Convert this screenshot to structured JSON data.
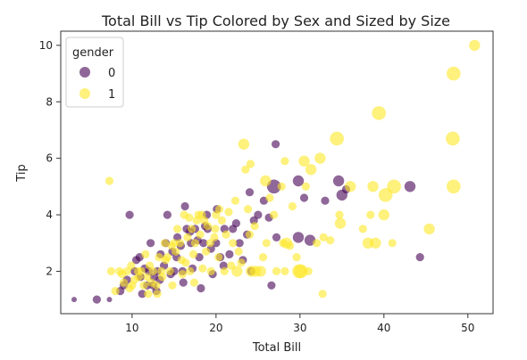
{
  "chart_data": {
    "type": "scatter",
    "title": "Total Bill vs Tip Colored by Sex and Sized by Size",
    "xlabel": "Total Bill",
    "ylabel": "Tip",
    "xlim": [
      1.5,
      53
    ],
    "ylim": [
      0.5,
      10.5
    ],
    "xticks": [
      10,
      20,
      30,
      40,
      50
    ],
    "yticks": [
      2,
      4,
      6,
      8,
      10
    ],
    "grid": false,
    "legend": {
      "title": "gender",
      "placement": "top-left",
      "entries": [
        {
          "label": "0",
          "color": "#440154"
        },
        {
          "label": "1",
          "color": "#fde725"
        }
      ]
    },
    "colors": {
      "0": "#440154",
      "1": "#fde725"
    },
    "marker_alpha": 0.6,
    "series": [
      {
        "name": "0",
        "points": [
          [
            3.1,
            1.0,
            1
          ],
          [
            5.8,
            1.0,
            2
          ],
          [
            7.3,
            1.0,
            1
          ],
          [
            9.7,
            4.0,
            2
          ],
          [
            14.2,
            4.0,
            2
          ],
          [
            16.3,
            4.3,
            2
          ],
          [
            20.1,
            4.2,
            2
          ],
          [
            27.1,
            6.5,
            2
          ],
          [
            29.8,
            5.2,
            3
          ],
          [
            26.9,
            5.0,
            4
          ],
          [
            29.8,
            3.2,
            3
          ],
          [
            34.6,
            5.2,
            3
          ],
          [
            35.0,
            4.7,
            3
          ],
          [
            43.1,
            5.0,
            3
          ],
          [
            44.3,
            2.5,
            2
          ],
          [
            26.6,
            1.5,
            2
          ],
          [
            24.2,
            2.0,
            2
          ],
          [
            10.3,
            2.0,
            2
          ],
          [
            11.0,
            1.8,
            2
          ],
          [
            12.0,
            2.0,
            2
          ],
          [
            12.5,
            1.5,
            2
          ],
          [
            13.0,
            2.0,
            2
          ],
          [
            13.4,
            2.6,
            2
          ],
          [
            14.0,
            3.0,
            2
          ],
          [
            15.0,
            2.0,
            2
          ],
          [
            15.3,
            2.5,
            2
          ],
          [
            16.0,
            2.0,
            2
          ],
          [
            16.5,
            3.5,
            2
          ],
          [
            17.0,
            3.0,
            2
          ],
          [
            17.5,
            3.5,
            2
          ],
          [
            18.0,
            2.5,
            2
          ],
          [
            18.5,
            3.0,
            2
          ],
          [
            19.0,
            3.5,
            2
          ],
          [
            20.0,
            3.0,
            2
          ],
          [
            20.5,
            2.5,
            2
          ],
          [
            21.0,
            3.5,
            2
          ],
          [
            22.0,
            3.5,
            2
          ],
          [
            22.8,
            3.0,
            2
          ],
          [
            23.7,
            3.3,
            2
          ],
          [
            24.5,
            3.8,
            2
          ],
          [
            25.0,
            4.0,
            2
          ],
          [
            27.2,
            3.2,
            2
          ],
          [
            12.6,
            1.8,
            2
          ],
          [
            11.5,
            2.1,
            2
          ],
          [
            10.5,
            2.4,
            2
          ],
          [
            9.0,
            1.5,
            2
          ],
          [
            8.6,
            1.3,
            2
          ],
          [
            13.8,
            2.2,
            2
          ],
          [
            14.6,
            1.9,
            2
          ],
          [
            15.8,
            2.9,
            2
          ],
          [
            18.2,
            1.4,
            2
          ],
          [
            19.6,
            1.9,
            2
          ],
          [
            21.6,
            2.6,
            2
          ],
          [
            22.4,
            3.7,
            2
          ],
          [
            16.9,
            3.4,
            2
          ],
          [
            17.8,
            3.1,
            2
          ],
          [
            11.8,
            1.5,
            2
          ],
          [
            10.9,
            2.5,
            2
          ],
          [
            12.2,
            3.0,
            2
          ],
          [
            24.0,
            4.8,
            2
          ],
          [
            25.7,
            4.5,
            2
          ],
          [
            30.5,
            4.6,
            2
          ],
          [
            33.0,
            4.5,
            2
          ],
          [
            35.5,
            4.9,
            2
          ],
          [
            18.7,
            3.6,
            2
          ],
          [
            19.4,
            2.8,
            2
          ],
          [
            20.9,
            2.2,
            2
          ],
          [
            13.3,
            1.7,
            2
          ],
          [
            14.8,
            2.7,
            2
          ],
          [
            16.1,
            1.6,
            2
          ],
          [
            17.2,
            2.1,
            2
          ],
          [
            15.4,
            3.2,
            2
          ],
          [
            18.9,
            4.0,
            2
          ],
          [
            12.9,
            1.3,
            2
          ],
          [
            11.2,
            1.2,
            2
          ],
          [
            9.4,
            1.7,
            2
          ],
          [
            23.2,
            2.4,
            2
          ],
          [
            26.3,
            3.9,
            2
          ],
          [
            31.2,
            3.1,
            3
          ]
        ]
      },
      {
        "name": "1",
        "points": [
          [
            50.8,
            10.0,
            3
          ],
          [
            48.3,
            9.0,
            4
          ],
          [
            39.4,
            7.6,
            4
          ],
          [
            34.4,
            6.7,
            4
          ],
          [
            48.2,
            6.7,
            4
          ],
          [
            48.3,
            5.0,
            4
          ],
          [
            41.2,
            5.0,
            4
          ],
          [
            40.2,
            4.7,
            4
          ],
          [
            38.7,
            5.0,
            3
          ],
          [
            32.4,
            6.0,
            3
          ],
          [
            31.3,
            5.6,
            3
          ],
          [
            30.5,
            5.9,
            3
          ],
          [
            28.2,
            5.9,
            2
          ],
          [
            25.9,
            5.2,
            3
          ],
          [
            23.3,
            6.5,
            3
          ],
          [
            24.1,
            5.8,
            2
          ],
          [
            23.5,
            5.6,
            2
          ],
          [
            7.3,
            5.2,
            2
          ],
          [
            45.4,
            3.5,
            3
          ],
          [
            40.0,
            4.0,
            3
          ],
          [
            38.1,
            3.0,
            3
          ],
          [
            39.0,
            3.0,
            3
          ],
          [
            41.0,
            3.0,
            2
          ],
          [
            34.8,
            3.7,
            3
          ],
          [
            34.7,
            4.0,
            2
          ],
          [
            32.8,
            3.2,
            2
          ],
          [
            32.7,
            1.2,
            2
          ],
          [
            30.1,
            2.0,
            4
          ],
          [
            29.9,
            2.0,
            4
          ],
          [
            28.4,
            3.0,
            3
          ],
          [
            28.2,
            2.0,
            2
          ],
          [
            27.2,
            2.0,
            2
          ],
          [
            25.3,
            2.0,
            3
          ],
          [
            24.7,
            2.0,
            3
          ],
          [
            24.2,
            2.0,
            3
          ],
          [
            22.5,
            2.0,
            3
          ],
          [
            21.0,
            2.0,
            2
          ],
          [
            20.3,
            2.5,
            2
          ],
          [
            19.8,
            3.2,
            2
          ],
          [
            19.4,
            2.0,
            2
          ],
          [
            18.8,
            2.7,
            2
          ],
          [
            18.3,
            4.0,
            2
          ],
          [
            17.9,
            4.0,
            2
          ],
          [
            17.5,
            3.0,
            2
          ],
          [
            17.3,
            2.6,
            2
          ],
          [
            16.9,
            2.0,
            2
          ],
          [
            16.6,
            3.2,
            2
          ],
          [
            16.4,
            2.3,
            2
          ],
          [
            16.0,
            1.9,
            2
          ],
          [
            15.7,
            3.0,
            2
          ],
          [
            15.4,
            3.5,
            2
          ],
          [
            15.0,
            3.0,
            2
          ],
          [
            14.8,
            1.5,
            2
          ],
          [
            14.5,
            2.0,
            2
          ],
          [
            14.2,
            2.5,
            2
          ],
          [
            13.9,
            3.0,
            2
          ],
          [
            13.5,
            2.0,
            2
          ],
          [
            13.2,
            2.5,
            2
          ],
          [
            12.9,
            1.5,
            2
          ],
          [
            12.5,
            2.0,
            2
          ],
          [
            12.1,
            2.2,
            2
          ],
          [
            11.8,
            1.8,
            2
          ],
          [
            11.4,
            1.5,
            2
          ],
          [
            11.1,
            2.0,
            2
          ],
          [
            10.7,
            2.0,
            2
          ],
          [
            10.3,
            1.7,
            2
          ],
          [
            10.0,
            1.5,
            2
          ],
          [
            9.7,
            1.4,
            2
          ],
          [
            9.4,
            2.0,
            2
          ],
          [
            9.0,
            1.6,
            2
          ],
          [
            8.5,
            2.0,
            2
          ],
          [
            7.5,
            2.0,
            2
          ],
          [
            8.0,
            1.3,
            2
          ],
          [
            18.6,
            3.8,
            2
          ],
          [
            19.0,
            3.6,
            2
          ],
          [
            20.0,
            4.0,
            2
          ],
          [
            20.7,
            3.8,
            2
          ],
          [
            21.5,
            4.1,
            2
          ],
          [
            22.0,
            3.0,
            2
          ],
          [
            22.7,
            2.7,
            2
          ],
          [
            23.0,
            2.3,
            2
          ],
          [
            24.0,
            3.3,
            2
          ],
          [
            24.6,
            3.6,
            2
          ],
          [
            25.6,
            2.5,
            2
          ],
          [
            26.0,
            3.0,
            2
          ],
          [
            26.9,
            4.0,
            2
          ],
          [
            28.0,
            3.0,
            2
          ],
          [
            28.8,
            2.9,
            2
          ],
          [
            29.6,
            2.5,
            2
          ],
          [
            31.0,
            2.0,
            2
          ],
          [
            32.0,
            3.0,
            2
          ],
          [
            33.6,
            3.1,
            2
          ],
          [
            38.4,
            4.0,
            2
          ],
          [
            37.5,
            3.5,
            2
          ],
          [
            17.1,
            3.5,
            2
          ],
          [
            17.7,
            3.8,
            2
          ],
          [
            18.1,
            3.3,
            2
          ],
          [
            19.3,
            3.0,
            2
          ],
          [
            15.2,
            2.7,
            2
          ],
          [
            14.0,
            2.4,
            2
          ],
          [
            13.0,
            1.2,
            2
          ],
          [
            11.9,
            1.2,
            2
          ],
          [
            16.2,
            4.0,
            2
          ],
          [
            16.8,
            3.9,
            2
          ],
          [
            21.2,
            3.3,
            2
          ],
          [
            20.4,
            4.2,
            2
          ],
          [
            22.3,
            4.5,
            2
          ],
          [
            13.6,
            1.8,
            2
          ],
          [
            12.3,
            1.6,
            2
          ],
          [
            14.7,
            2.9,
            2
          ],
          [
            15.9,
            2.4,
            2
          ],
          [
            18.4,
            2.1,
            2
          ],
          [
            19.9,
            3.5,
            2
          ],
          [
            26.4,
            4.6,
            2
          ],
          [
            29.1,
            4.3,
            2
          ],
          [
            30.7,
            5.0,
            2
          ],
          [
            27.8,
            5.0,
            2
          ],
          [
            36.0,
            5.0,
            3
          ],
          [
            10.8,
            1.8,
            2
          ],
          [
            9.9,
            2.2,
            2
          ],
          [
            11.6,
            2.6,
            2
          ],
          [
            8.8,
            1.9,
            2
          ],
          [
            17.4,
            1.6,
            2
          ],
          [
            21.8,
            2.2,
            2
          ],
          [
            23.8,
            4.2,
            2
          ]
        ]
      }
    ]
  }
}
